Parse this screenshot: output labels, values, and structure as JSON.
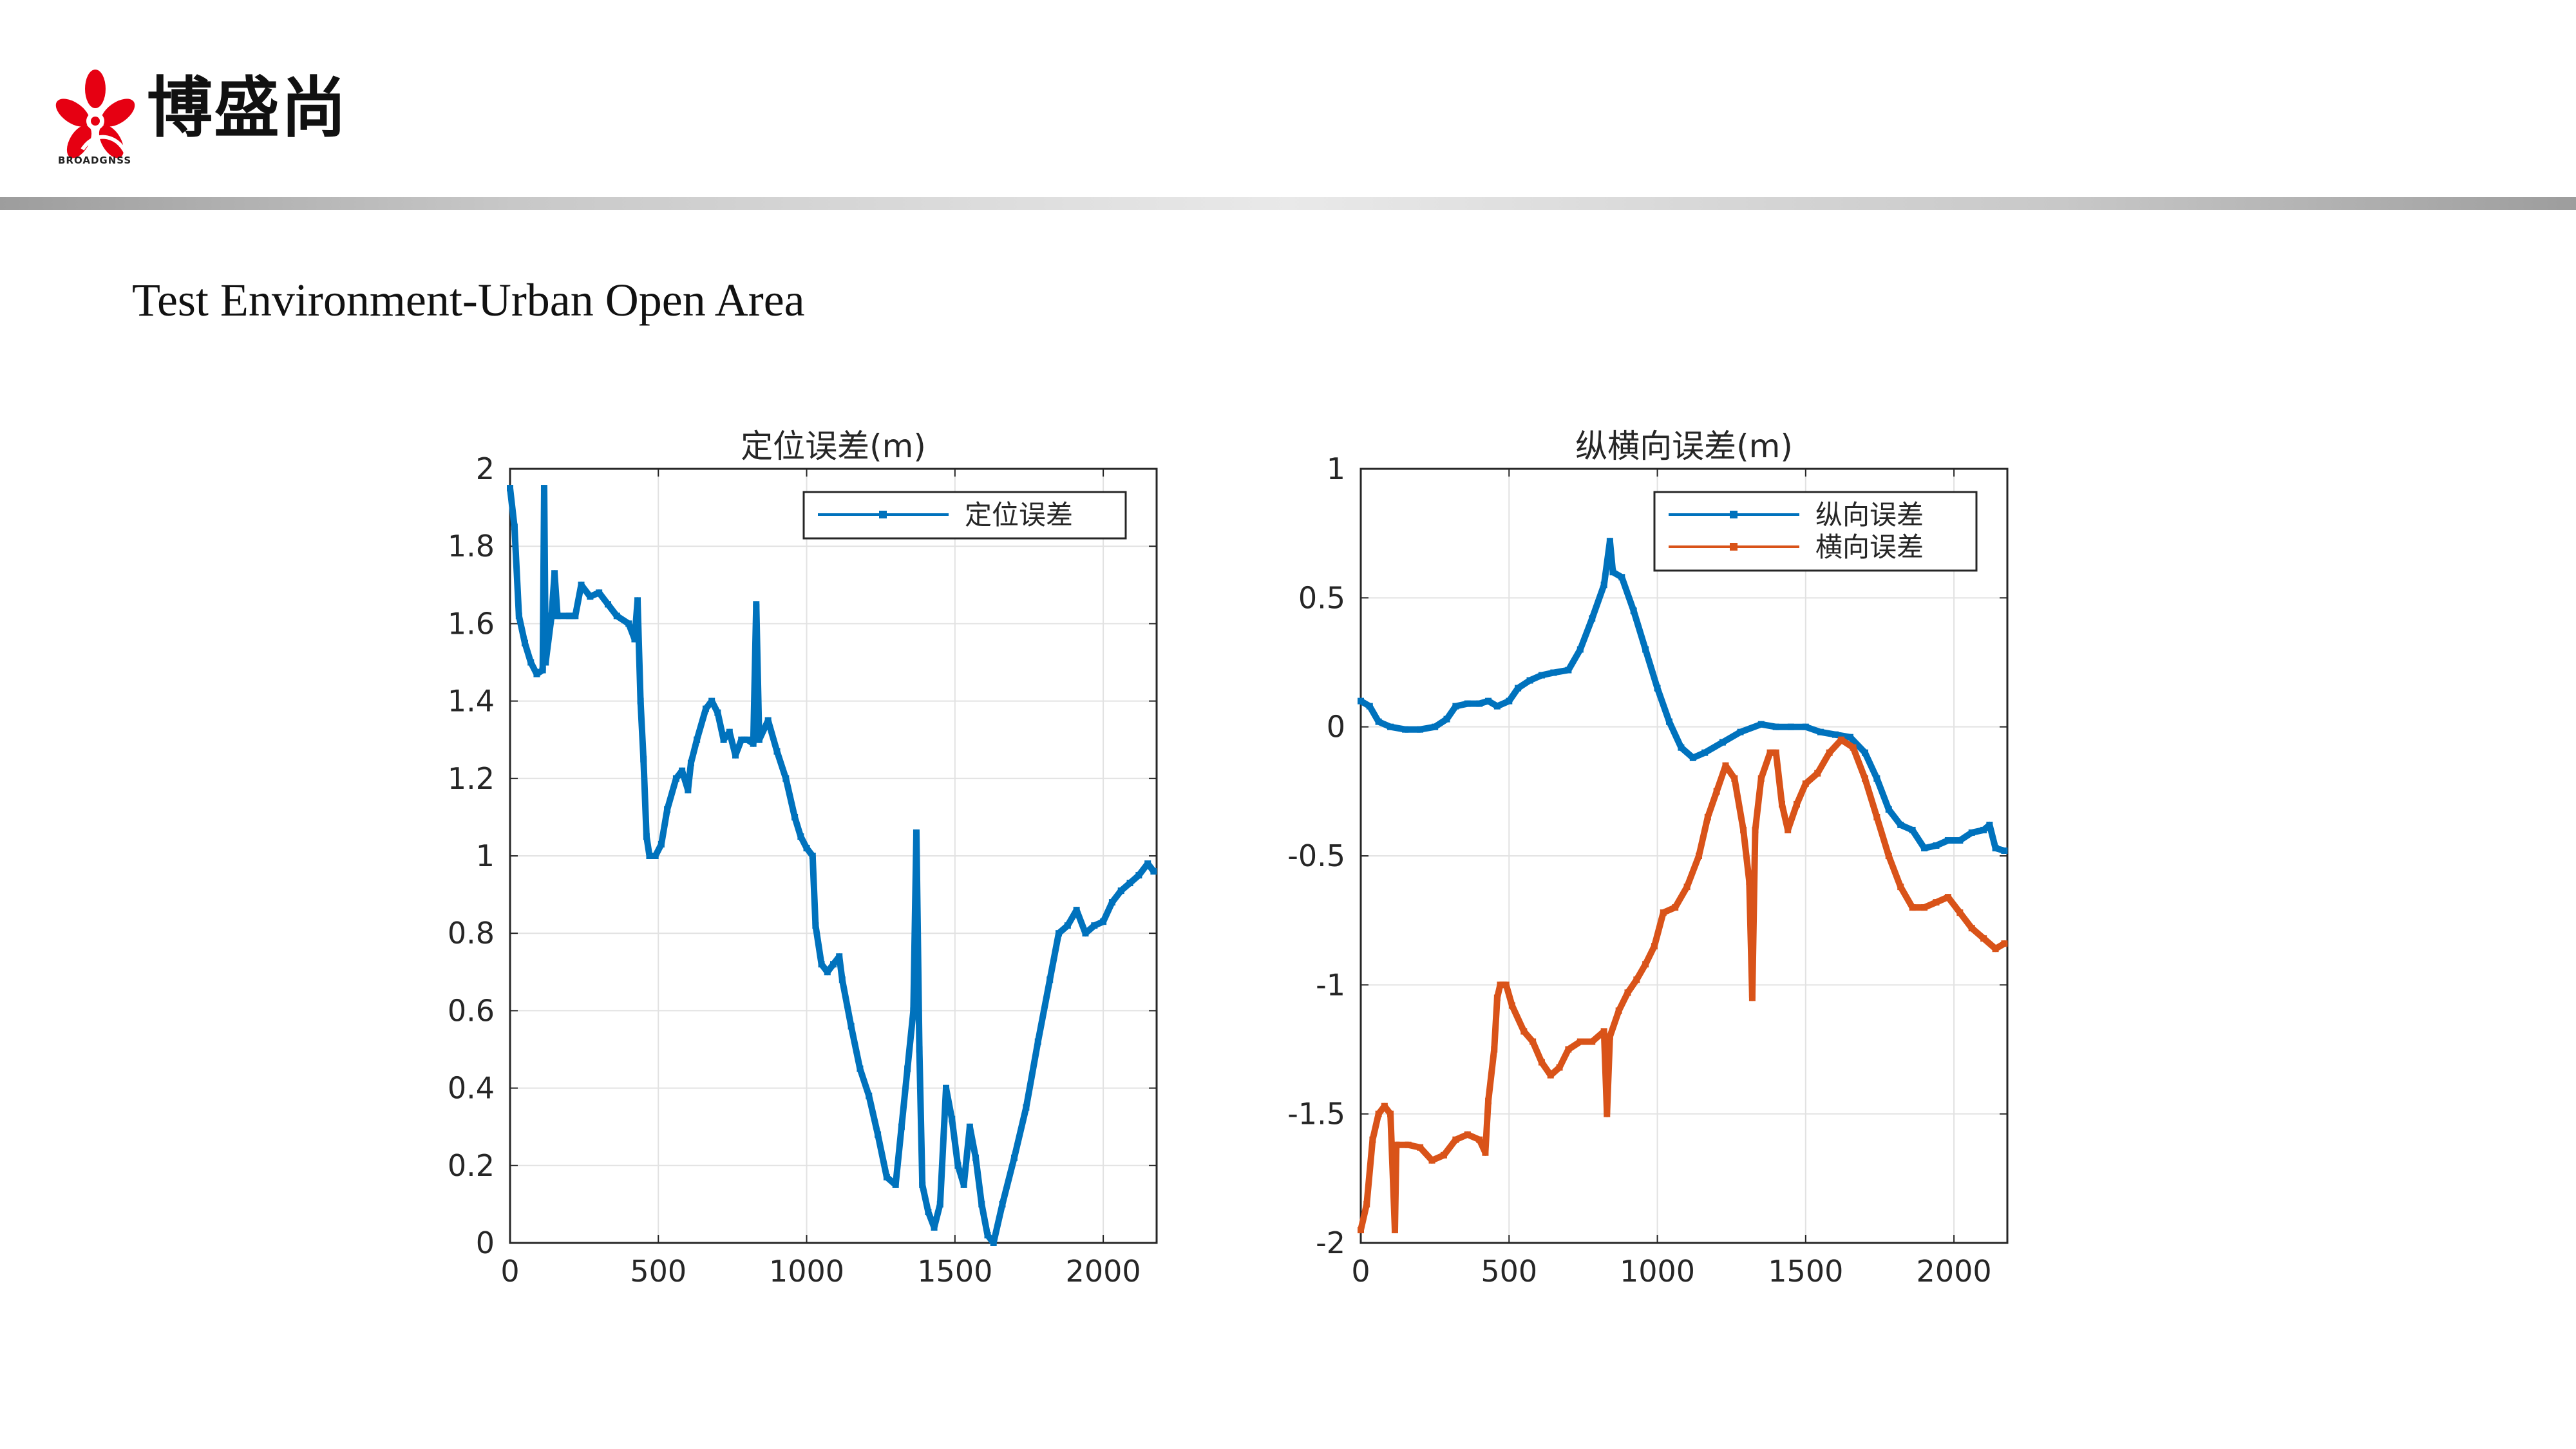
{
  "header": {
    "logo_text": "博盛尚",
    "logo_sub": "BROADGNSS"
  },
  "slide": {
    "title": "Test Environment-Urban Open Area"
  },
  "colors": {
    "blue": "#0072BD",
    "orange": "#D95319",
    "logo_red": "#e60012"
  },
  "chart_data": [
    {
      "type": "line",
      "title": "定位误差(m)",
      "xlabel": "",
      "ylabel": "",
      "xlim": [
        0,
        2180
      ],
      "ylim": [
        0,
        2
      ],
      "xticks": [
        0,
        500,
        1000,
        1500,
        2000
      ],
      "yticks": [
        0,
        0.2,
        0.4,
        0.6,
        0.8,
        1,
        1.2,
        1.4,
        1.6,
        1.8,
        2
      ],
      "ytick_labels": [
        "0",
        "0.2",
        "0.4",
        "0.6",
        "0.8",
        "1",
        "1.2",
        "1.4",
        "1.6",
        "1.8",
        "2"
      ],
      "grid": true,
      "legend": "top-right",
      "series": [
        {
          "name": "定位误差",
          "color": "#0072BD",
          "points": [
            [
              0,
              1.95
            ],
            [
              15,
              1.85
            ],
            [
              30,
              1.62
            ],
            [
              50,
              1.55
            ],
            [
              70,
              1.5
            ],
            [
              90,
              1.47
            ],
            [
              110,
              1.48
            ],
            [
              115,
              1.95
            ],
            [
              120,
              1.5
            ],
            [
              140,
              1.62
            ],
            [
              150,
              1.73
            ],
            [
              160,
              1.62
            ],
            [
              200,
              1.62
            ],
            [
              220,
              1.62
            ],
            [
              240,
              1.7
            ],
            [
              270,
              1.67
            ],
            [
              300,
              1.68
            ],
            [
              330,
              1.65
            ],
            [
              360,
              1.62
            ],
            [
              400,
              1.6
            ],
            [
              420,
              1.56
            ],
            [
              430,
              1.66
            ],
            [
              440,
              1.4
            ],
            [
              450,
              1.25
            ],
            [
              460,
              1.05
            ],
            [
              470,
              1.0
            ],
            [
              490,
              1.0
            ],
            [
              510,
              1.03
            ],
            [
              530,
              1.12
            ],
            [
              560,
              1.2
            ],
            [
              580,
              1.22
            ],
            [
              600,
              1.17
            ],
            [
              610,
              1.24
            ],
            [
              630,
              1.3
            ],
            [
              660,
              1.38
            ],
            [
              680,
              1.4
            ],
            [
              700,
              1.37
            ],
            [
              720,
              1.3
            ],
            [
              740,
              1.32
            ],
            [
              760,
              1.26
            ],
            [
              780,
              1.3
            ],
            [
              800,
              1.3
            ],
            [
              820,
              1.29
            ],
            [
              830,
              1.65
            ],
            [
              840,
              1.3
            ],
            [
              870,
              1.35
            ],
            [
              900,
              1.27
            ],
            [
              930,
              1.2
            ],
            [
              960,
              1.1
            ],
            [
              980,
              1.05
            ],
            [
              1000,
              1.02
            ],
            [
              1020,
              1.0
            ],
            [
              1030,
              0.82
            ],
            [
              1050,
              0.72
            ],
            [
              1070,
              0.7
            ],
            [
              1090,
              0.72
            ],
            [
              1110,
              0.74
            ],
            [
              1120,
              0.68
            ],
            [
              1150,
              0.56
            ],
            [
              1180,
              0.45
            ],
            [
              1210,
              0.38
            ],
            [
              1240,
              0.28
            ],
            [
              1270,
              0.17
            ],
            [
              1300,
              0.15
            ],
            [
              1320,
              0.3
            ],
            [
              1340,
              0.45
            ],
            [
              1360,
              0.6
            ],
            [
              1370,
              1.06
            ],
            [
              1380,
              0.5
            ],
            [
              1390,
              0.15
            ],
            [
              1410,
              0.08
            ],
            [
              1430,
              0.04
            ],
            [
              1450,
              0.1
            ],
            [
              1470,
              0.4
            ],
            [
              1490,
              0.32
            ],
            [
              1510,
              0.2
            ],
            [
              1530,
              0.15
            ],
            [
              1550,
              0.3
            ],
            [
              1570,
              0.22
            ],
            [
              1590,
              0.1
            ],
            [
              1610,
              0.02
            ],
            [
              1630,
              0.0
            ],
            [
              1660,
              0.1
            ],
            [
              1700,
              0.22
            ],
            [
              1740,
              0.35
            ],
            [
              1780,
              0.52
            ],
            [
              1820,
              0.68
            ],
            [
              1850,
              0.8
            ],
            [
              1880,
              0.82
            ],
            [
              1910,
              0.86
            ],
            [
              1940,
              0.8
            ],
            [
              1970,
              0.82
            ],
            [
              2000,
              0.83
            ],
            [
              2030,
              0.88
            ],
            [
              2060,
              0.91
            ],
            [
              2090,
              0.93
            ],
            [
              2120,
              0.95
            ],
            [
              2150,
              0.98
            ],
            [
              2170,
              0.96
            ]
          ]
        }
      ]
    },
    {
      "type": "line",
      "title": "纵横向误差(m)",
      "xlabel": "",
      "ylabel": "",
      "xlim": [
        0,
        2180
      ],
      "ylim": [
        -2,
        1
      ],
      "xticks": [
        0,
        500,
        1000,
        1500,
        2000
      ],
      "yticks": [
        -2,
        -1.5,
        -1,
        -0.5,
        0,
        0.5,
        1
      ],
      "ytick_labels": [
        "-2",
        "-1.5",
        "-1",
        "-0.5",
        "0",
        "0.5",
        "1"
      ],
      "grid": true,
      "legend": "top-right",
      "series": [
        {
          "name": "纵向误差",
          "color": "#0072BD",
          "points": [
            [
              0,
              0.1
            ],
            [
              30,
              0.08
            ],
            [
              60,
              0.02
            ],
            [
              100,
              0.0
            ],
            [
              150,
              -0.01
            ],
            [
              200,
              -0.01
            ],
            [
              250,
              0.0
            ],
            [
              290,
              0.03
            ],
            [
              320,
              0.08
            ],
            [
              360,
              0.09
            ],
            [
              400,
              0.09
            ],
            [
              430,
              0.1
            ],
            [
              460,
              0.08
            ],
            [
              500,
              0.1
            ],
            [
              530,
              0.15
            ],
            [
              570,
              0.18
            ],
            [
              610,
              0.2
            ],
            [
              650,
              0.21
            ],
            [
              700,
              0.22
            ],
            [
              740,
              0.3
            ],
            [
              780,
              0.42
            ],
            [
              820,
              0.55
            ],
            [
              840,
              0.72
            ],
            [
              850,
              0.6
            ],
            [
              880,
              0.58
            ],
            [
              920,
              0.45
            ],
            [
              960,
              0.3
            ],
            [
              1000,
              0.15
            ],
            [
              1040,
              0.02
            ],
            [
              1080,
              -0.08
            ],
            [
              1120,
              -0.12
            ],
            [
              1160,
              -0.1
            ],
            [
              1220,
              -0.06
            ],
            [
              1280,
              -0.02
            ],
            [
              1350,
              0.01
            ],
            [
              1400,
              0.0
            ],
            [
              1450,
              0.0
            ],
            [
              1500,
              0.0
            ],
            [
              1550,
              -0.02
            ],
            [
              1600,
              -0.03
            ],
            [
              1650,
              -0.04
            ],
            [
              1700,
              -0.1
            ],
            [
              1740,
              -0.2
            ],
            [
              1780,
              -0.32
            ],
            [
              1820,
              -0.38
            ],
            [
              1860,
              -0.4
            ],
            [
              1900,
              -0.47
            ],
            [
              1940,
              -0.46
            ],
            [
              1980,
              -0.44
            ],
            [
              2020,
              -0.44
            ],
            [
              2060,
              -0.41
            ],
            [
              2100,
              -0.4
            ],
            [
              2120,
              -0.38
            ],
            [
              2140,
              -0.47
            ],
            [
              2170,
              -0.48
            ]
          ]
        },
        {
          "name": "横向误差",
          "color": "#D95319",
          "points": [
            [
              0,
              -1.95
            ],
            [
              20,
              -1.85
            ],
            [
              40,
              -1.6
            ],
            [
              60,
              -1.5
            ],
            [
              80,
              -1.47
            ],
            [
              100,
              -1.5
            ],
            [
              115,
              -1.95
            ],
            [
              120,
              -1.62
            ],
            [
              160,
              -1.62
            ],
            [
              200,
              -1.63
            ],
            [
              240,
              -1.68
            ],
            [
              280,
              -1.66
            ],
            [
              320,
              -1.6
            ],
            [
              360,
              -1.58
            ],
            [
              400,
              -1.6
            ],
            [
              420,
              -1.65
            ],
            [
              430,
              -1.45
            ],
            [
              450,
              -1.25
            ],
            [
              460,
              -1.05
            ],
            [
              470,
              -1.0
            ],
            [
              490,
              -1.0
            ],
            [
              510,
              -1.08
            ],
            [
              550,
              -1.18
            ],
            [
              580,
              -1.22
            ],
            [
              610,
              -1.3
            ],
            [
              640,
              -1.35
            ],
            [
              670,
              -1.32
            ],
            [
              700,
              -1.25
            ],
            [
              740,
              -1.22
            ],
            [
              780,
              -1.22
            ],
            [
              820,
              -1.18
            ],
            [
              830,
              -1.5
            ],
            [
              840,
              -1.2
            ],
            [
              870,
              -1.1
            ],
            [
              900,
              -1.03
            ],
            [
              930,
              -0.98
            ],
            [
              960,
              -0.92
            ],
            [
              990,
              -0.85
            ],
            [
              1020,
              -0.72
            ],
            [
              1060,
              -0.7
            ],
            [
              1100,
              -0.62
            ],
            [
              1140,
              -0.5
            ],
            [
              1170,
              -0.35
            ],
            [
              1200,
              -0.25
            ],
            [
              1230,
              -0.15
            ],
            [
              1260,
              -0.2
            ],
            [
              1290,
              -0.4
            ],
            [
              1310,
              -0.6
            ],
            [
              1320,
              -1.05
            ],
            [
              1330,
              -0.4
            ],
            [
              1350,
              -0.2
            ],
            [
              1380,
              -0.1
            ],
            [
              1400,
              -0.1
            ],
            [
              1420,
              -0.3
            ],
            [
              1440,
              -0.4
            ],
            [
              1470,
              -0.3
            ],
            [
              1500,
              -0.22
            ],
            [
              1540,
              -0.18
            ],
            [
              1580,
              -0.1
            ],
            [
              1620,
              -0.05
            ],
            [
              1660,
              -0.08
            ],
            [
              1700,
              -0.2
            ],
            [
              1740,
              -0.35
            ],
            [
              1780,
              -0.5
            ],
            [
              1820,
              -0.62
            ],
            [
              1860,
              -0.7
            ],
            [
              1900,
              -0.7
            ],
            [
              1940,
              -0.68
            ],
            [
              1980,
              -0.66
            ],
            [
              2020,
              -0.72
            ],
            [
              2060,
              -0.78
            ],
            [
              2100,
              -0.82
            ],
            [
              2140,
              -0.86
            ],
            [
              2170,
              -0.84
            ]
          ]
        }
      ]
    }
  ]
}
